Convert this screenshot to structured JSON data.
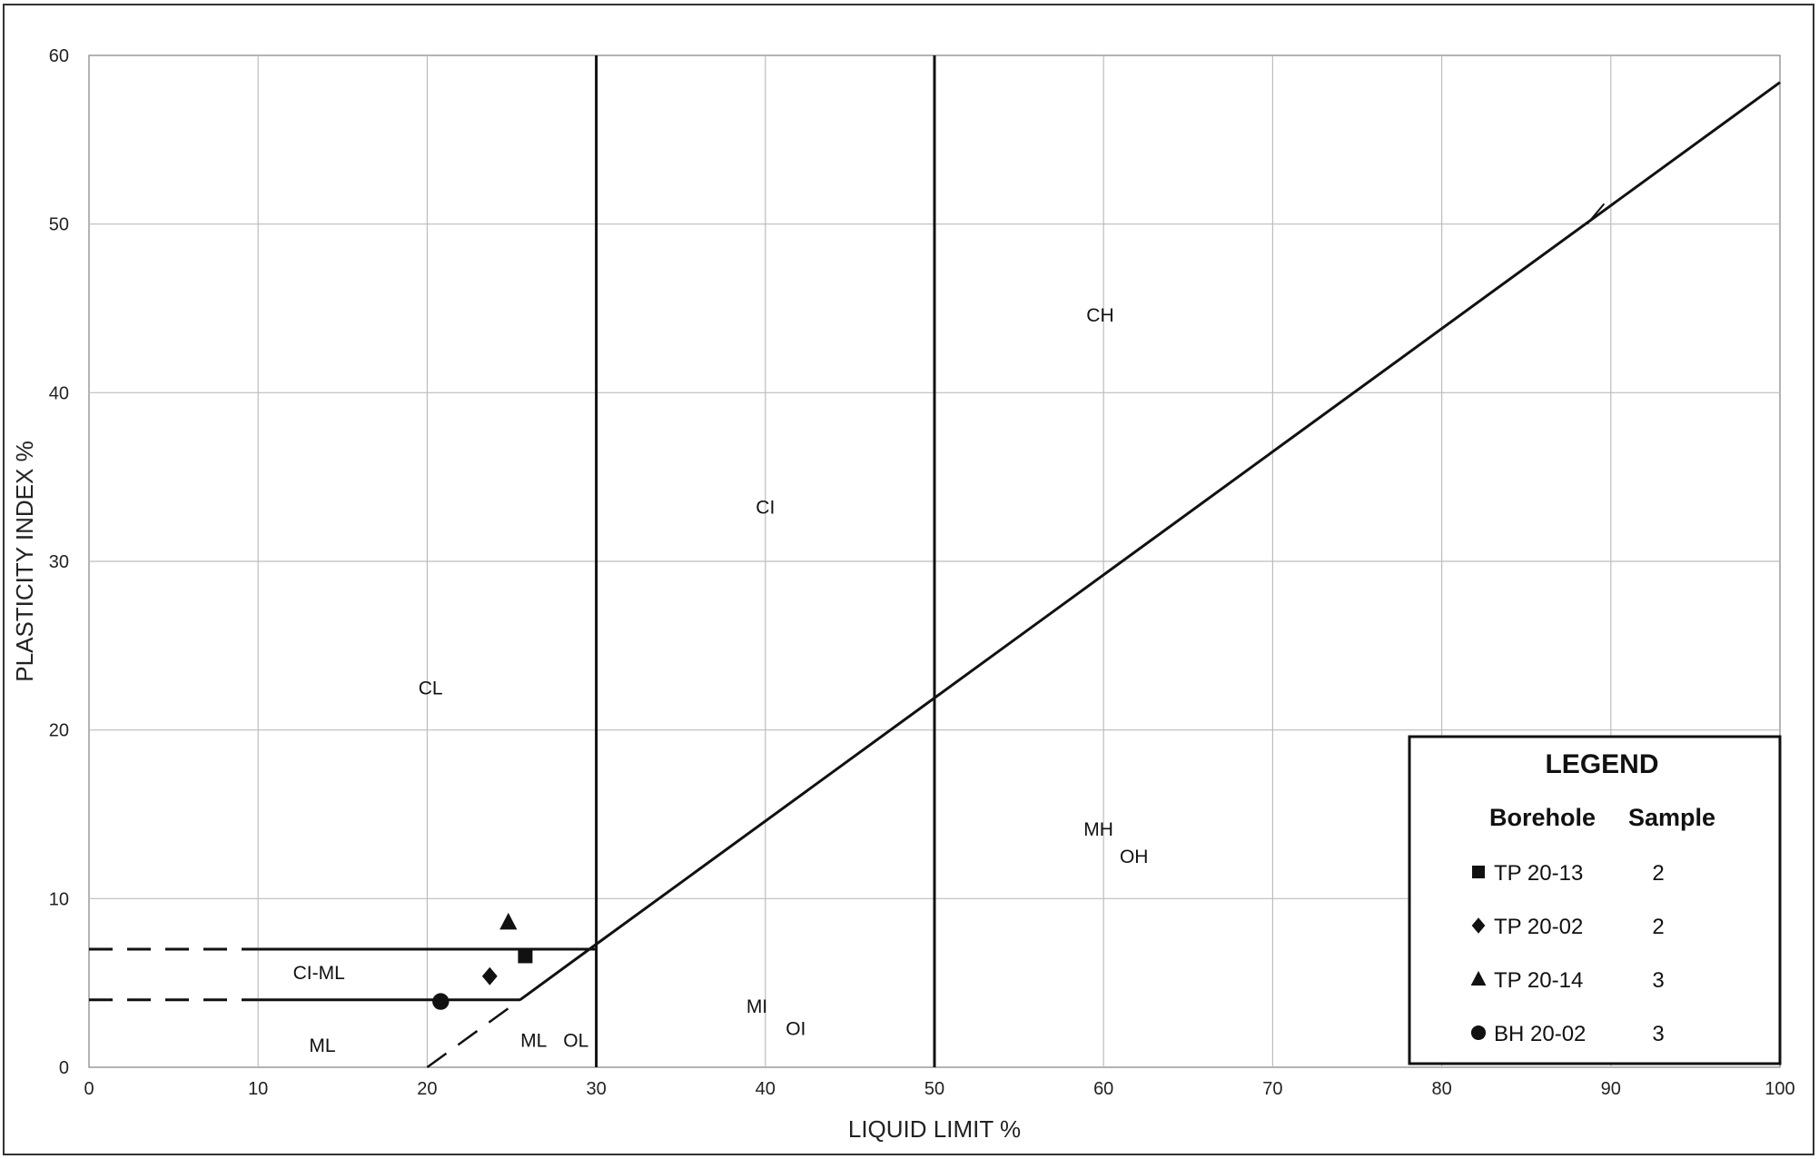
{
  "chart_data": {
    "type": "scatter",
    "xlabel": "LIQUID LIMIT %",
    "ylabel": "PLASTICITY INDEX %",
    "xlim": [
      0,
      100
    ],
    "ylim": [
      0,
      60
    ],
    "x_ticks": [
      "0",
      "10",
      "20",
      "30",
      "40",
      "50",
      "60",
      "70",
      "80",
      "90",
      "100"
    ],
    "y_ticks": [
      "0",
      "10",
      "20",
      "30",
      "40",
      "50",
      "60"
    ],
    "grid": true,
    "legend_position": "bottom-right",
    "a_line": [
      [
        20,
        0
      ],
      [
        25.5,
        4
      ],
      [
        30,
        7.3
      ],
      [
        100,
        58.4
      ]
    ],
    "a_line_dashed_segment": [
      [
        20,
        0
      ],
      [
        25.5,
        4
      ]
    ],
    "u_line_segment": [
      [
        88.6,
        50
      ],
      [
        89.6,
        51.2
      ]
    ],
    "boundary_lines": {
      "ll_30": [
        [
          30,
          0
        ],
        [
          30,
          60
        ]
      ],
      "ll_50": [
        [
          50,
          0
        ],
        [
          50,
          60
        ]
      ],
      "pi_7": [
        [
          10,
          7
        ],
        [
          30,
          7
        ]
      ],
      "pi_4": [
        [
          10,
          4
        ],
        [
          25.5,
          4
        ]
      ],
      "pi_7_dashed": [
        [
          0,
          7
        ],
        [
          10,
          7
        ]
      ],
      "pi_4_dashed": [
        [
          0,
          4
        ],
        [
          10,
          4
        ]
      ]
    },
    "zone_labels": [
      {
        "text": "CL",
        "x": 20.2,
        "y": 22.5
      },
      {
        "text": "CI",
        "x": 40,
        "y": 33.2
      },
      {
        "text": "CH",
        "x": 59.8,
        "y": 44.6
      },
      {
        "text": "CI-ML",
        "x": 13.6,
        "y": 5.6
      },
      {
        "text": "ML",
        "x": 13.8,
        "y": 1.3
      },
      {
        "text": "ML",
        "x": 26.3,
        "y": 1.6
      },
      {
        "text": "OL",
        "x": 28.8,
        "y": 1.6
      },
      {
        "text": "MI",
        "x": 39.5,
        "y": 3.6
      },
      {
        "text": "OI",
        "x": 41.8,
        "y": 2.3
      },
      {
        "text": "MH",
        "x": 59.7,
        "y": 14.1
      },
      {
        "text": "OH",
        "x": 61.8,
        "y": 12.5
      }
    ],
    "series": [
      {
        "name": "TP 20-13",
        "sample": "2",
        "marker": "square",
        "x": [
          25.8
        ],
        "y": [
          6.6
        ]
      },
      {
        "name": "TP 20-02",
        "sample": "2",
        "marker": "diamond",
        "x": [
          23.7
        ],
        "y": [
          5.4
        ]
      },
      {
        "name": "TP 20-14",
        "sample": "3",
        "marker": "triangle",
        "x": [
          24.8
        ],
        "y": [
          8.6
        ]
      },
      {
        "name": "BH 20-02",
        "sample": "3",
        "marker": "circle",
        "x": [
          20.8
        ],
        "y": [
          3.9
        ]
      }
    ],
    "legend": {
      "title": "LEGEND",
      "col_borehole": "Borehole",
      "col_sample": "Sample"
    },
    "colors": {
      "line": "#111111",
      "grid": "#bdbdbd",
      "marker": "#111111"
    }
  }
}
